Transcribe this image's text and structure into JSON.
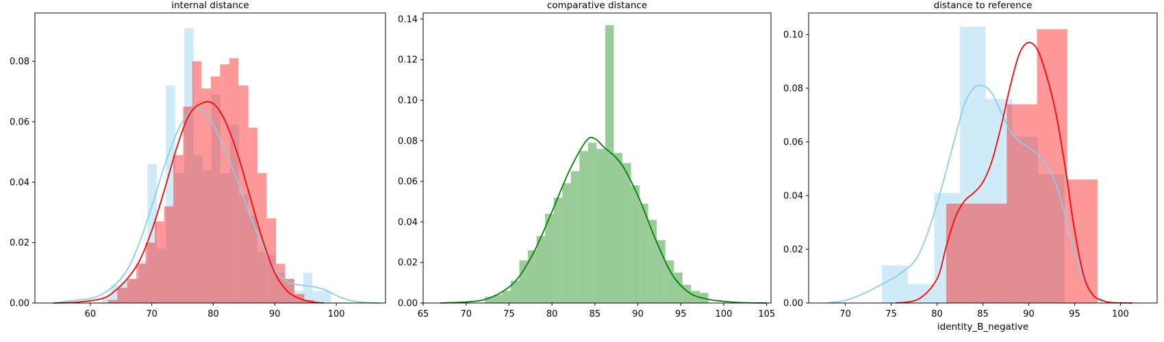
{
  "chart_data": [
    {
      "type": "histogram",
      "title": "internal distance",
      "xlabel": "",
      "ylabel": "",
      "xlim": [
        51,
        108
      ],
      "ylim": [
        0,
        0.096
      ],
      "xticks": [
        "60",
        "70",
        "80",
        "90",
        "100"
      ],
      "yticks": [
        "0.00",
        "0.02",
        "0.04",
        "0.06",
        "0.08"
      ],
      "grid": false,
      "series": [
        {
          "color": "#87ceeb",
          "bins": [
            [
              61.9,
              63.4,
              0.002
            ],
            [
              63.4,
              64.9,
              0.006
            ],
            [
              64.9,
              66.4,
              0.007
            ],
            [
              66.4,
              67.9,
              0.008
            ],
            [
              67.9,
              69.3,
              0.014
            ],
            [
              69.3,
              70.8,
              0.046
            ],
            [
              70.8,
              72.3,
              0.018
            ],
            [
              72.3,
              73.8,
              0.072
            ],
            [
              73.8,
              75.3,
              0.043
            ],
            [
              75.3,
              76.8,
              0.091
            ],
            [
              76.8,
              78.3,
              0.049
            ],
            [
              78.3,
              79.7,
              0.044
            ],
            [
              79.7,
              81.2,
              0.069
            ],
            [
              81.2,
              82.7,
              0.043
            ],
            [
              82.7,
              84.2,
              0.059
            ],
            [
              84.2,
              85.7,
              0.036
            ],
            [
              85.7,
              87.2,
              0.029
            ],
            [
              87.2,
              88.7,
              0.017
            ],
            [
              88.7,
              90.1,
              0.016
            ],
            [
              90.1,
              91.6,
              0.01
            ],
            [
              91.6,
              93.1,
              0.008
            ],
            [
              93.1,
              94.6,
              0.004
            ],
            [
              94.6,
              96.1,
              0.01
            ],
            [
              96.1,
              97.6,
              0.004
            ],
            [
              97.6,
              99.1,
              0.004
            ]
          ],
          "kde_x": [
            54,
            56,
            58,
            60,
            62,
            64,
            66,
            68,
            70,
            72,
            74,
            76,
            78,
            80,
            82,
            84,
            86,
            88,
            90,
            92,
            94,
            96,
            98,
            100,
            102,
            104,
            107
          ],
          "kde_y": [
            0.0,
            0.0005,
            0.001,
            0.0015,
            0.003,
            0.006,
            0.011,
            0.02,
            0.032,
            0.045,
            0.056,
            0.063,
            0.064,
            0.059,
            0.05,
            0.04,
            0.029,
            0.019,
            0.011,
            0.007,
            0.006,
            0.0055,
            0.0045,
            0.0025,
            0.001,
            0.0003,
            0.0
          ]
        },
        {
          "color": "#ff0000",
          "bins": [
            [
              62.9,
              64.4,
              0.001
            ],
            [
              64.4,
              66.0,
              0.005
            ],
            [
              66.0,
              67.5,
              0.008
            ],
            [
              67.5,
              69.0,
              0.013
            ],
            [
              69.0,
              70.5,
              0.02
            ],
            [
              70.5,
              72.0,
              0.027
            ],
            [
              72.0,
              73.5,
              0.032
            ],
            [
              73.5,
              75.1,
              0.049
            ],
            [
              75.1,
              76.6,
              0.065
            ],
            [
              76.6,
              78.1,
              0.08
            ],
            [
              78.1,
              79.6,
              0.071
            ],
            [
              79.6,
              81.1,
              0.075
            ],
            [
              81.1,
              82.6,
              0.079
            ],
            [
              82.6,
              84.1,
              0.081
            ],
            [
              84.1,
              85.7,
              0.072
            ],
            [
              85.7,
              87.2,
              0.058
            ],
            [
              87.2,
              88.7,
              0.043
            ],
            [
              88.7,
              90.2,
              0.028
            ],
            [
              90.2,
              91.7,
              0.013
            ],
            [
              91.7,
              93.2,
              0.008
            ],
            [
              93.2,
              94.8,
              0.003
            ],
            [
              94.8,
              96.3,
              0.001
            ]
          ],
          "kde_x": [
            54,
            58,
            62,
            64,
            66,
            68,
            70,
            72,
            74,
            76,
            78,
            80,
            82,
            84,
            86,
            88,
            90,
            92,
            94,
            96,
            98
          ],
          "kde_y": [
            0.0,
            0.0003,
            0.0015,
            0.004,
            0.008,
            0.014,
            0.024,
            0.037,
            0.051,
            0.062,
            0.066,
            0.066,
            0.06,
            0.049,
            0.035,
            0.021,
            0.01,
            0.004,
            0.0015,
            0.0004,
            0.0
          ]
        }
      ]
    },
    {
      "type": "histogram",
      "title": "comparative distance",
      "xlabel": "",
      "ylabel": "",
      "xlim": [
        65,
        105.5
      ],
      "ylim": [
        0,
        0.143
      ],
      "xticks": [
        "65",
        "70",
        "75",
        "80",
        "85",
        "90",
        "95",
        "100",
        "105"
      ],
      "yticks": [
        "0.00",
        "0.02",
        "0.04",
        "0.06",
        "0.08",
        "0.10",
        "0.12",
        "0.14"
      ],
      "grid": false,
      "series": [
        {
          "color": "#008000",
          "bins": [
            [
              72.2,
              73.2,
              0.003
            ],
            [
              73.2,
              74.2,
              0.004
            ],
            [
              74.2,
              75.2,
              0.006
            ],
            [
              75.2,
              76.2,
              0.011
            ],
            [
              76.2,
              77.2,
              0.021
            ],
            [
              77.2,
              78.2,
              0.026
            ],
            [
              78.2,
              79.2,
              0.033
            ],
            [
              79.2,
              80.2,
              0.044
            ],
            [
              80.2,
              81.2,
              0.052
            ],
            [
              81.2,
              82.2,
              0.059
            ],
            [
              82.2,
              83.2,
              0.065
            ],
            [
              83.2,
              84.2,
              0.075
            ],
            [
              84.2,
              85.2,
              0.079
            ],
            [
              85.2,
              86.2,
              0.076
            ],
            [
              86.2,
              87.2,
              0.137
            ],
            [
              87.2,
              88.2,
              0.074
            ],
            [
              88.2,
              89.2,
              0.069
            ],
            [
              89.2,
              90.2,
              0.058
            ],
            [
              90.2,
              91.2,
              0.049
            ],
            [
              91.2,
              92.2,
              0.041
            ],
            [
              92.2,
              93.2,
              0.031
            ],
            [
              93.2,
              94.2,
              0.021
            ],
            [
              94.2,
              95.2,
              0.015
            ],
            [
              95.2,
              96.2,
              0.009
            ],
            [
              96.2,
              97.2,
              0.006
            ],
            [
              97.2,
              98.2,
              0.005
            ]
          ],
          "kde_x": [
            67,
            70,
            72,
            74,
            76,
            78,
            80,
            82,
            84,
            85,
            86,
            88,
            90,
            92,
            94,
            96,
            98,
            100,
            102,
            105
          ],
          "kde_y": [
            0.0,
            0.0005,
            0.0015,
            0.005,
            0.012,
            0.026,
            0.045,
            0.065,
            0.08,
            0.081,
            0.077,
            0.069,
            0.053,
            0.032,
            0.014,
            0.005,
            0.002,
            0.0008,
            0.0002,
            0.0
          ]
        }
      ]
    },
    {
      "type": "histogram",
      "title": "distance to reference",
      "xlabel": "identity_B_negative",
      "ylabel": "",
      "xlim": [
        66,
        104
      ],
      "ylim": [
        0,
        0.108
      ],
      "xticks": [
        "70",
        "75",
        "80",
        "85",
        "90",
        "95",
        "100"
      ],
      "yticks": [
        "0.00",
        "0.02",
        "0.04",
        "0.06",
        "0.08",
        "0.10"
      ],
      "grid": false,
      "series": [
        {
          "color": "#87ceeb",
          "bins": [
            [
              74.0,
              76.8,
              0.014
            ],
            [
              76.8,
              79.7,
              0.007
            ],
            [
              79.7,
              82.5,
              0.041
            ],
            [
              82.5,
              85.3,
              0.103
            ],
            [
              85.3,
              88.2,
              0.076
            ],
            [
              88.2,
              91.0,
              0.062
            ],
            [
              91.0,
              93.9,
              0.048
            ]
          ],
          "kde_x": [
            68,
            70,
            72,
            74,
            76,
            78,
            80,
            82,
            83,
            84,
            85,
            86,
            87,
            88,
            89,
            90,
            91,
            92,
            93,
            94,
            95,
            96,
            97,
            98
          ],
          "kde_y": [
            0.0,
            0.001,
            0.0035,
            0.007,
            0.011,
            0.018,
            0.037,
            0.062,
            0.074,
            0.08,
            0.081,
            0.078,
            0.071,
            0.064,
            0.06,
            0.058,
            0.055,
            0.051,
            0.044,
            0.032,
            0.019,
            0.009,
            0.003,
            0.0005
          ]
        },
        {
          "color": "#ff0000",
          "bins": [
            [
              81.0,
              84.3,
              0.037
            ],
            [
              84.3,
              87.6,
              0.037
            ],
            [
              87.6,
              90.9,
              0.074
            ],
            [
              90.9,
              94.2,
              0.102
            ],
            [
              94.2,
              97.5,
              0.046
            ]
          ],
          "kde_x": [
            75.5,
            78,
            80,
            81,
            82,
            83,
            84,
            85,
            86,
            87,
            88,
            89,
            90,
            91,
            92,
            93,
            94,
            95,
            96,
            97,
            98,
            99,
            101.3
          ],
          "kde_y": [
            0.0,
            0.0015,
            0.009,
            0.021,
            0.032,
            0.038,
            0.041,
            0.045,
            0.053,
            0.066,
            0.081,
            0.093,
            0.097,
            0.094,
            0.084,
            0.07,
            0.05,
            0.027,
            0.01,
            0.003,
            0.001,
            0.0002,
            0.0
          ]
        }
      ]
    }
  ]
}
